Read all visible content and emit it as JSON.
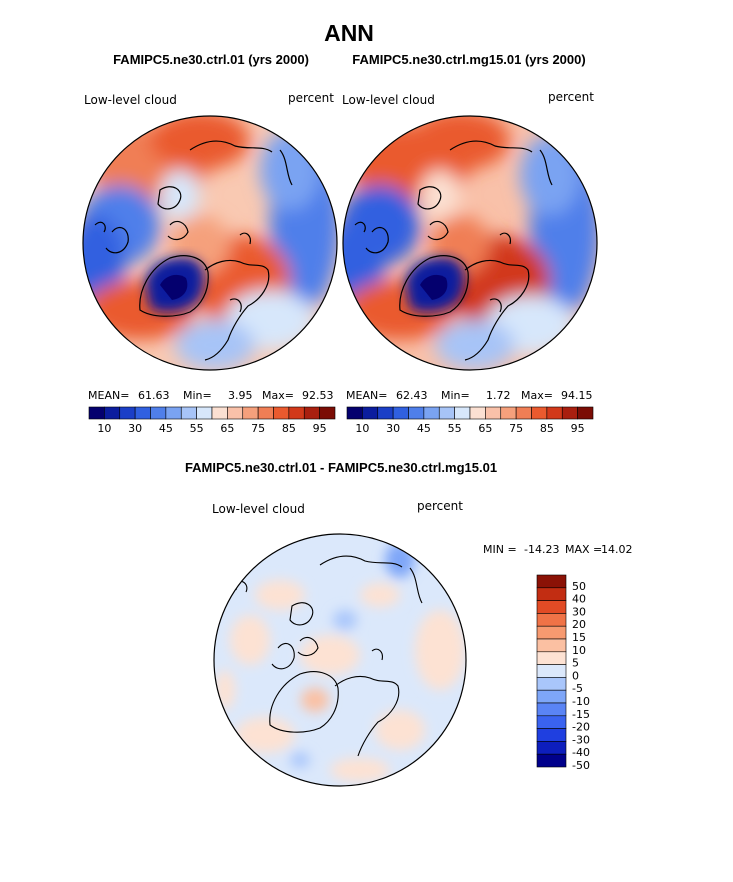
{
  "figure": {
    "title": "ANN",
    "variable": "Low-level cloud",
    "units": "percent"
  },
  "chart_data": [
    {
      "type": "heatmap",
      "projection": "north-polar-stereographic",
      "title": "FAMIPC5.ne30.ctrl.01 (yrs 2000)",
      "left_label": "Low-level cloud",
      "right_label": "percent",
      "stats": {
        "mean_label": "MEAN=",
        "mean": "61.63",
        "min_label": "Min=",
        "min": "3.95",
        "max_label": "Max=",
        "max": "92.53"
      },
      "colorbar_tick_labels": [
        "10",
        "30",
        "45",
        "55",
        "65",
        "75",
        "85",
        "95"
      ],
      "contour_levels": [
        5,
        10,
        20,
        30,
        40,
        45,
        50,
        55,
        60,
        65,
        70,
        75,
        80,
        85,
        90,
        95
      ],
      "field_pattern": [
        {
          "region": "north-atlantic-greenland-sea",
          "value": 85
        },
        {
          "region": "barents-kara-sea",
          "value": 80
        },
        {
          "region": "greenland",
          "value": 20
        },
        {
          "region": "central-arctic",
          "value": 65
        },
        {
          "region": "siberia-interior",
          "value": 45
        },
        {
          "region": "canada-interior",
          "value": 40
        },
        {
          "region": "bering-chukchi",
          "value": 80
        }
      ]
    },
    {
      "type": "heatmap",
      "projection": "north-polar-stereographic",
      "title": "FAMIPC5.ne30.ctrl.mg15.01 (yrs 2000)",
      "left_label": "Low-level cloud",
      "right_label": "percent",
      "stats": {
        "mean_label": "MEAN=",
        "mean": "62.43",
        "min_label": "Min=",
        "min": "1.72",
        "max_label": "Max=",
        "max": "94.15"
      },
      "colorbar_tick_labels": [
        "10",
        "30",
        "45",
        "55",
        "65",
        "75",
        "85",
        "95"
      ],
      "contour_levels": [
        5,
        10,
        20,
        30,
        40,
        45,
        50,
        55,
        60,
        65,
        70,
        75,
        80,
        85,
        90,
        95
      ],
      "field_pattern": [
        {
          "region": "north-atlantic-greenland-sea",
          "value": 88
        },
        {
          "region": "barents-kara-sea",
          "value": 85
        },
        {
          "region": "greenland",
          "value": 15
        },
        {
          "region": "central-arctic",
          "value": 68
        },
        {
          "region": "siberia-interior",
          "value": 45
        },
        {
          "region": "canada-interior",
          "value": 40
        },
        {
          "region": "bering-chukchi",
          "value": 82
        }
      ]
    },
    {
      "type": "heatmap",
      "projection": "north-polar-stereographic",
      "title": "FAMIPC5.ne30.ctrl.01 - FAMIPC5.ne30.ctrl.mg15.01",
      "left_label": "Low-level cloud",
      "right_label": "percent",
      "stats": {
        "min_label": "MIN =",
        "min": "-14.23",
        "max_label": "MAX =",
        "max": "14.02"
      },
      "colorbar_tick_labels": [
        "50",
        "40",
        "30",
        "20",
        "15",
        "10",
        "5",
        "0",
        "-5",
        "-10",
        "-15",
        "-20",
        "-30",
        "-40",
        "-50"
      ],
      "contour_levels": [
        -50,
        -40,
        -30,
        -20,
        -15,
        -10,
        -5,
        0,
        5,
        10,
        15,
        20,
        30,
        40,
        50
      ],
      "field_pattern": [
        {
          "region": "most-of-domain",
          "value": -2
        },
        {
          "region": "north-pacific-patch",
          "value": -8
        },
        {
          "region": "atlantic-patches",
          "value": 4
        },
        {
          "region": "europe-patch",
          "value": 6
        }
      ]
    }
  ],
  "colors": {
    "full_field": [
      "#04006e",
      "#0b1d9e",
      "#1b3fc7",
      "#3060e0",
      "#4f7fea",
      "#7aa3f2",
      "#a7c4f7",
      "#d7e7fb",
      "#fbe0d2",
      "#f9c1a9",
      "#f5a07c",
      "#f07e55",
      "#ea5a2e",
      "#d2391a",
      "#a91f0f",
      "#7b0d05"
    ],
    "difference": [
      "#00008b",
      "#0d1ebd",
      "#1f3fe0",
      "#3a63f0",
      "#5a84f5",
      "#7ea6f8",
      "#a9c6fb",
      "#dbe8fb",
      "#fde2d3",
      "#fbc0a2",
      "#f79a70",
      "#f07347",
      "#e24b25",
      "#c22d12",
      "#8b1206"
    ],
    "land_outline": "#000000",
    "frame": "#000000"
  }
}
